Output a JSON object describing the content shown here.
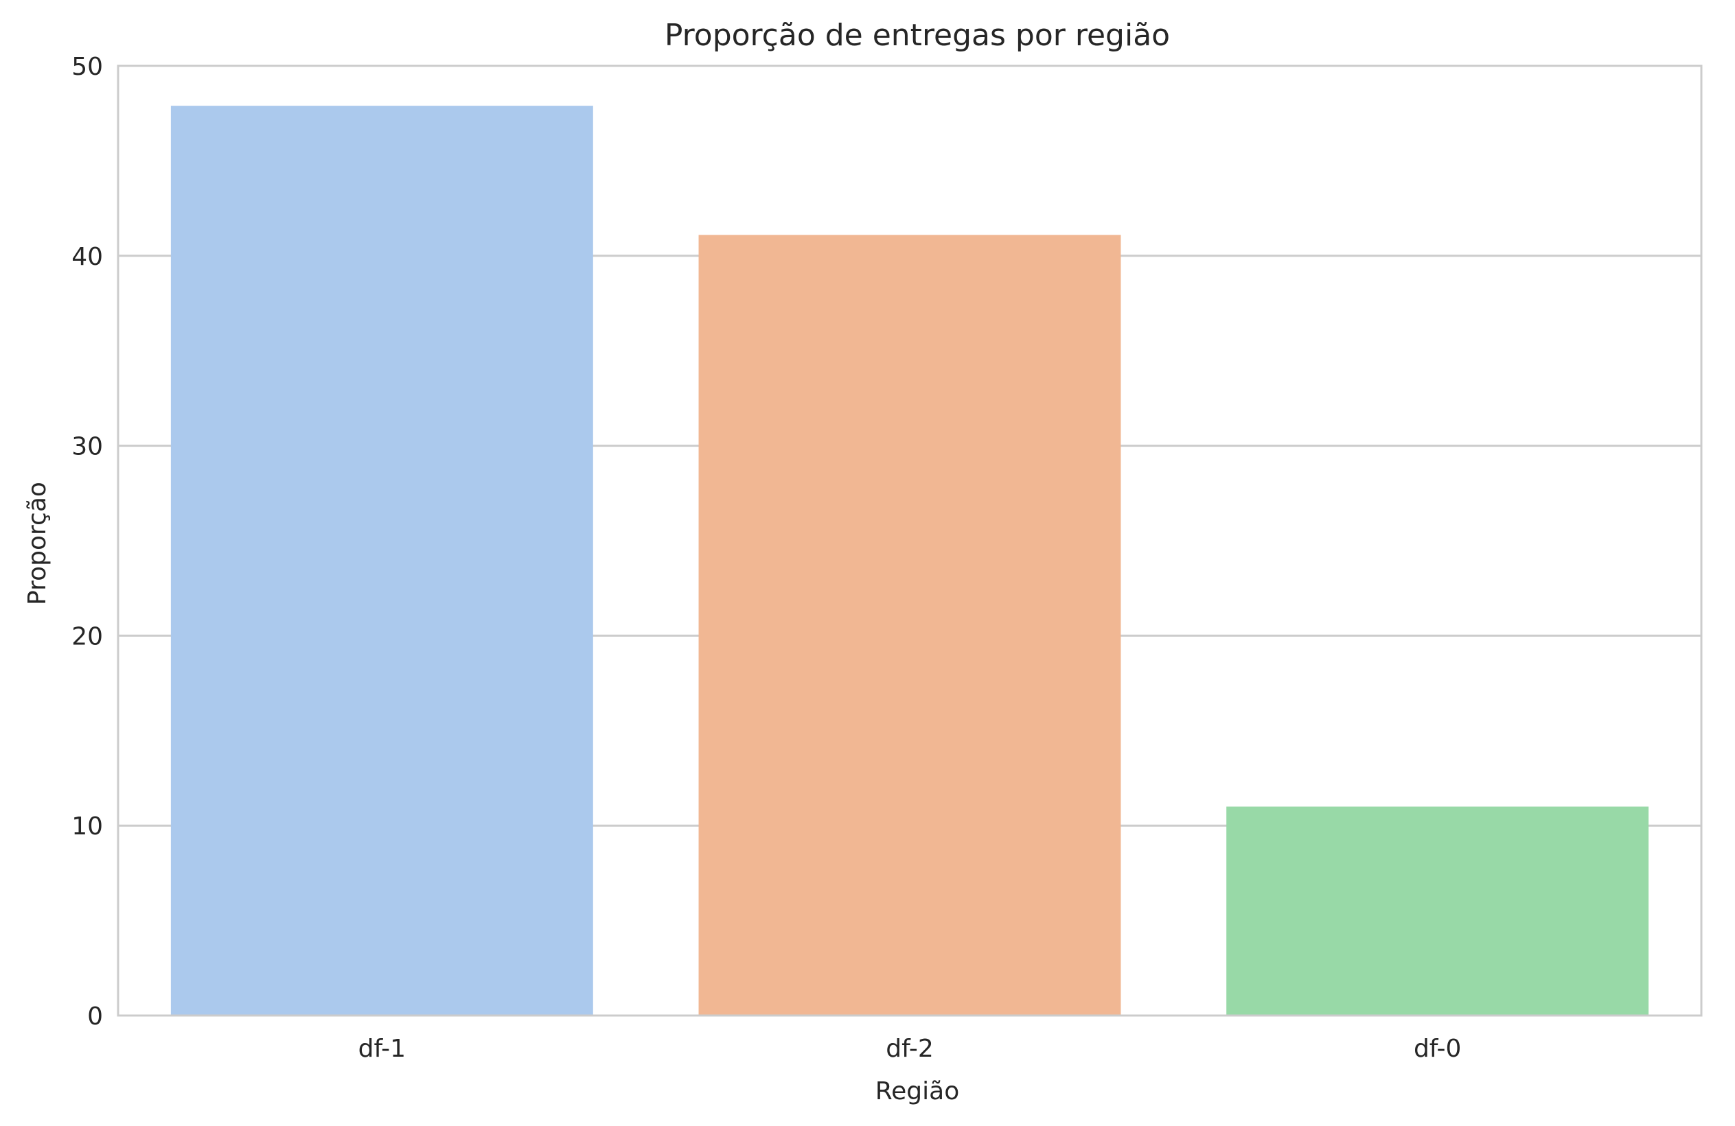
{
  "chart_data": {
    "type": "bar",
    "title": "Proporção de entregas por região",
    "xlabel": "Região",
    "ylabel": "Proporção",
    "categories": [
      "df-1",
      "df-2",
      "df-0"
    ],
    "values": [
      47.9,
      41.1,
      11.0
    ],
    "colors": [
      "#abc9ed",
      "#f1b793",
      "#98d9a7"
    ],
    "ylim": [
      0,
      50
    ],
    "yticks": [
      "0",
      "10",
      "20",
      "30",
      "40",
      "50"
    ],
    "grid": true,
    "grid_axis": "y",
    "grid_color": "#cccccc",
    "background": "#ffffff"
  }
}
